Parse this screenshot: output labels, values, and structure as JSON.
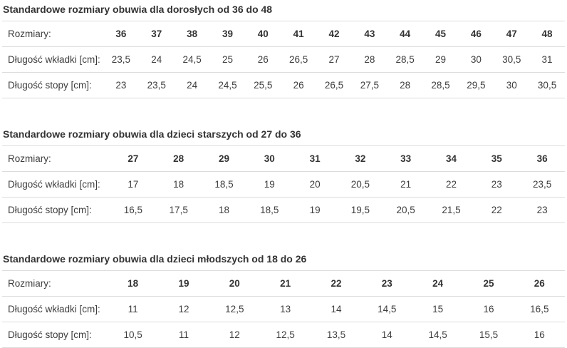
{
  "page": {
    "background_color": "#ffffff",
    "text_color": "#3d3d3d",
    "title_color": "#333333",
    "border_color": "#dcdcdc"
  },
  "row_labels": {
    "sizes": "Rozmiary:",
    "insole": "Długość wkładki [cm]:",
    "foot": "Długość stopy [cm]:"
  },
  "tables": [
    {
      "title": "Standardowe rozmiary obuwia dla dorosłych od 36 do 48",
      "sizes": [
        "36",
        "37",
        "38",
        "39",
        "40",
        "41",
        "42",
        "43",
        "44",
        "45",
        "46",
        "47",
        "48"
      ],
      "insole_cm": [
        "23,5",
        "24",
        "24,5",
        "25",
        "26",
        "26,5",
        "27",
        "28",
        "28,5",
        "29",
        "30",
        "30,5",
        "31"
      ],
      "foot_cm": [
        "23",
        "23,5",
        "24",
        "24,5",
        "25,5",
        "26",
        "26,5",
        "27,5",
        "28",
        "28,5",
        "29,5",
        "30",
        "30,5"
      ]
    },
    {
      "title": "Standardowe rozmiary obuwia dla dzieci starszych od 27 do 36",
      "sizes": [
        "27",
        "28",
        "29",
        "30",
        "31",
        "32",
        "33",
        "34",
        "35",
        "36"
      ],
      "insole_cm": [
        "17",
        "18",
        "18,5",
        "19",
        "20",
        "20,5",
        "21",
        "22",
        "23",
        "23,5"
      ],
      "foot_cm": [
        "16,5",
        "17,5",
        "18",
        "18,5",
        "19",
        "19,5",
        "20,5",
        "21,5",
        "22",
        "23"
      ]
    },
    {
      "title": "Standardowe rozmiary obuwia dla dzieci młodszych od 18 do 26",
      "sizes": [
        "18",
        "19",
        "20",
        "21",
        "22",
        "23",
        "24",
        "25",
        "26"
      ],
      "insole_cm": [
        "11",
        "12",
        "12,5",
        "13",
        "14",
        "14,5",
        "15",
        "16",
        "16,5"
      ],
      "foot_cm": [
        "10,5",
        "11",
        "12",
        "12,5",
        "13,5",
        "14",
        "14,5",
        "15,5",
        "16"
      ]
    }
  ]
}
